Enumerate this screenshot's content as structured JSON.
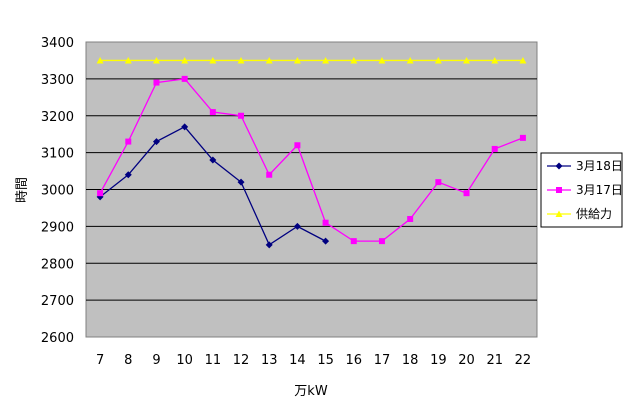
{
  "chart_data": {
    "type": "line",
    "xlabel": "万kW",
    "ylabel": "時間",
    "ylim": [
      2600,
      3400
    ],
    "y_ticks": [
      "2600",
      "2700",
      "2800",
      "2900",
      "3000",
      "3100",
      "3200",
      "3300",
      "3400"
    ],
    "categories": [
      "7",
      "8",
      "9",
      "10",
      "11",
      "12",
      "13",
      "14",
      "15",
      "16",
      "17",
      "18",
      "19",
      "20",
      "21",
      "22"
    ],
    "grid": true,
    "plot_background": "#c0c0c0",
    "legend_position": "right",
    "series": [
      {
        "name": "3月18日",
        "color": "#000080",
        "marker": "diamond",
        "values": [
          2980,
          3040,
          3130,
          3170,
          3080,
          3020,
          2850,
          2900,
          2860,
          null,
          null,
          null,
          null,
          null,
          null,
          null
        ]
      },
      {
        "name": "3月17日",
        "color": "#ff00ff",
        "marker": "square",
        "values": [
          2990,
          3130,
          3290,
          3300,
          3210,
          3200,
          3040,
          3120,
          2910,
          2860,
          2860,
          2920,
          3020,
          2990,
          3110,
          3140
        ]
      },
      {
        "name": "供給力",
        "color": "#ffff00",
        "marker": "triangle",
        "values": [
          3350,
          3350,
          3350,
          3350,
          3350,
          3350,
          3350,
          3350,
          3350,
          3350,
          3350,
          3350,
          3350,
          3350,
          3350,
          3350
        ]
      }
    ]
  }
}
